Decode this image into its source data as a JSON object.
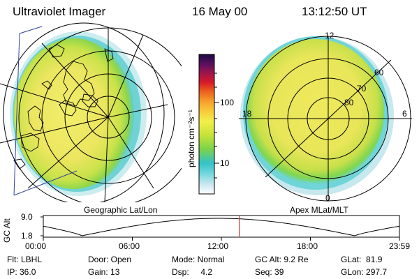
{
  "header": {
    "instrument": "Ultraviolet Imager",
    "date": "16 May 00",
    "time": "13:12:50 UT"
  },
  "left_panel": {
    "caption": "Geographic Lat/Lon"
  },
  "right_panel": {
    "caption": "Apex MLat/MLT",
    "mlt_labels": [
      "12",
      "6",
      "0",
      "18"
    ],
    "lat_labels": [
      "60",
      "70",
      "80"
    ]
  },
  "colorbar": {
    "unit_label": "photon cm⁻²s⁻¹",
    "tick_labels": [
      "100",
      "10"
    ],
    "scale": "log",
    "colors": [
      "#ffffff",
      "#c8e6ee",
      "#6fd6dc",
      "#32c3c8",
      "#7ad34a",
      "#c6e23a",
      "#f3ef4a",
      "#f8c63a",
      "#f59a2a",
      "#ea5a1e",
      "#d7192a",
      "#a3164a",
      "#5a1060",
      "#1a0a40"
    ]
  },
  "altitude_plot": {
    "ylabel": "GC Alt",
    "yticks": [
      "9.0",
      "1.8"
    ],
    "xticks": [
      "00:00",
      "06:00",
      "12:00",
      "18:00",
      "23:59"
    ],
    "marker_time_hours": 13.21,
    "marker_color": "#e03030"
  },
  "info": {
    "flt": "Flt: LBHL",
    "ip": "IP: 36.0",
    "door": "Door: Open",
    "gain": "Gain: 13",
    "mode": "Mode: Normal",
    "dsp": "Dsp:     4.2",
    "gcalt": "GC Alt: 9.2 Re",
    "seq": "Seq: 39",
    "glat": "GLat:  81.9",
    "glon": "GLon: 297.7"
  }
}
